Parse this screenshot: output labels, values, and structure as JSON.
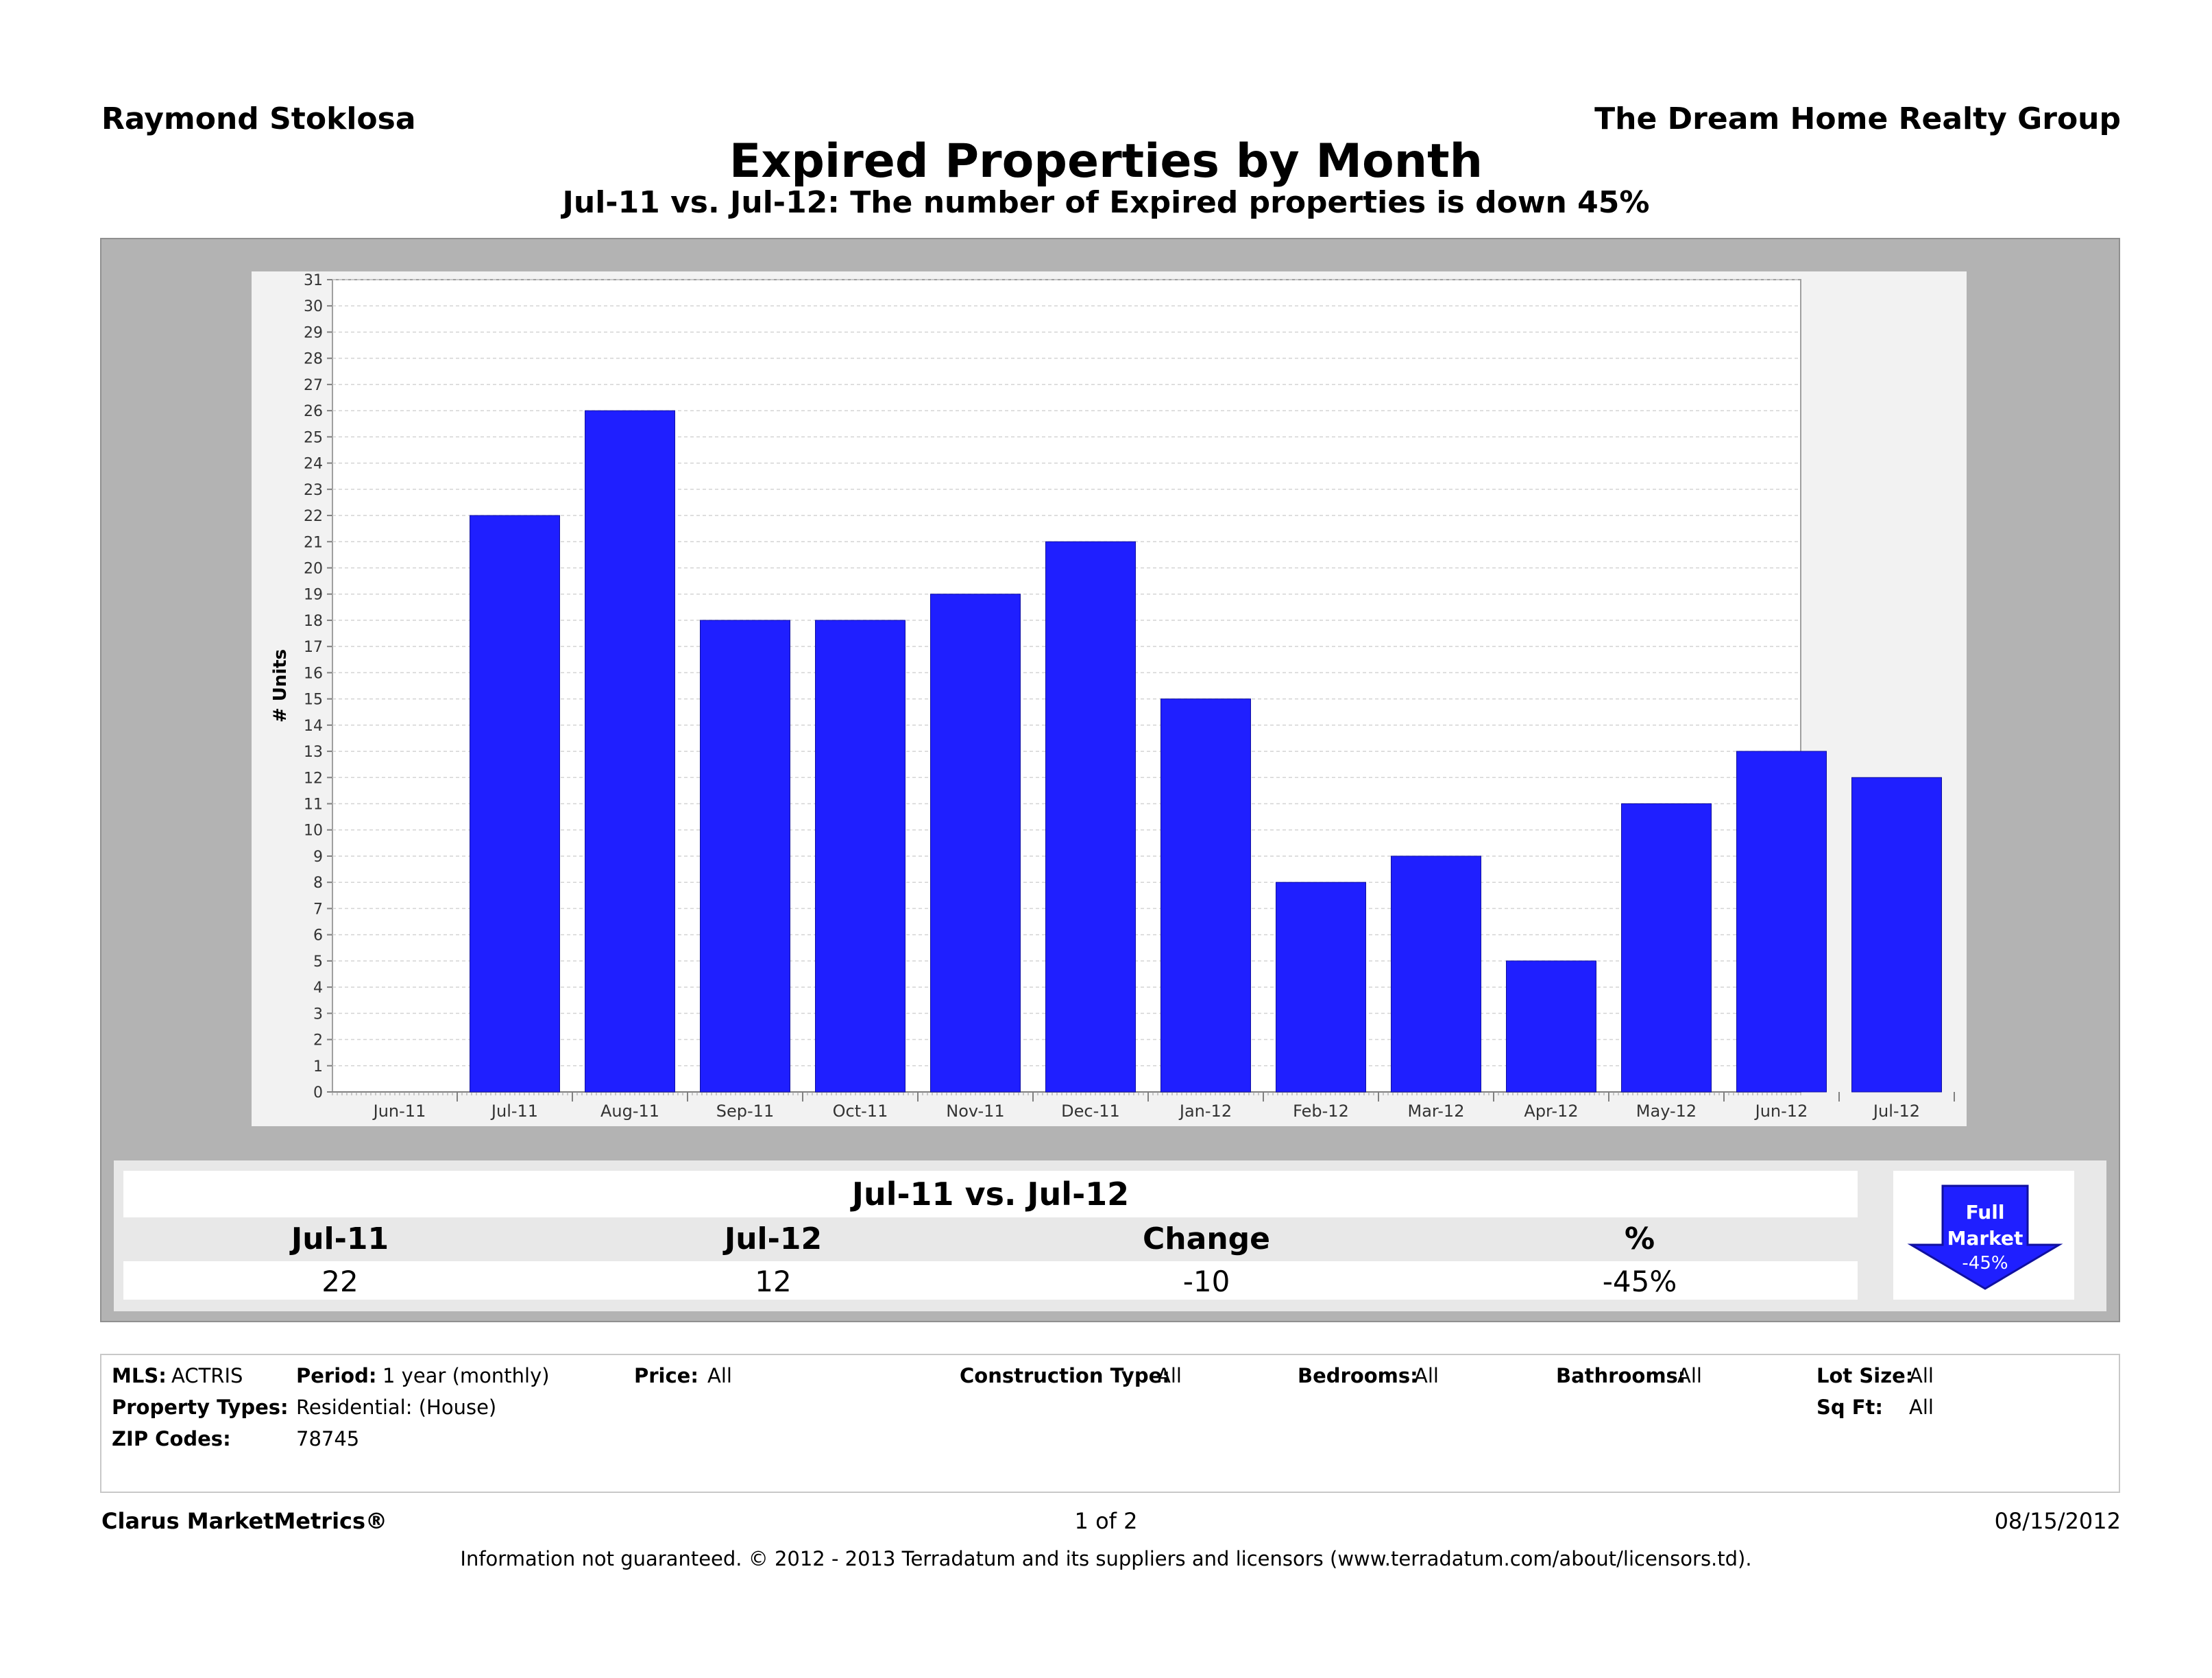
{
  "header": {
    "agent": "Raymond Stoklosa",
    "company": "The Dream Home Realty Group",
    "title": "Expired Properties by Month",
    "subtitle": "Jul-11 vs. Jul-12: The number of Expired properties is down 45%"
  },
  "chart_data": {
    "type": "bar",
    "title": "Expired Properties by Month",
    "ylabel": "# Units",
    "xlabel": "",
    "ylim": [
      0,
      31
    ],
    "grid": true,
    "bar_color": "#1f1fff",
    "categories": [
      "Jun-11",
      "Jul-11",
      "Aug-11",
      "Sep-11",
      "Oct-11",
      "Nov-11",
      "Dec-11",
      "Jan-12",
      "Feb-12",
      "Mar-12",
      "Apr-12",
      "May-12",
      "Jun-12",
      "Jul-12"
    ],
    "values": [
      null,
      22,
      26,
      18,
      18,
      19,
      21,
      15,
      8,
      9,
      5,
      11,
      13,
      12
    ]
  },
  "comparison": {
    "heading": "Jul-11 vs. Jul-12",
    "columns": [
      {
        "label": "Jul-11",
        "value": "22"
      },
      {
        "label": "Jul-12",
        "value": "12"
      },
      {
        "label": "Change",
        "value": "-10"
      },
      {
        "label": "%",
        "value": "-45%"
      }
    ],
    "badge": {
      "line1": "Full",
      "line2": "Market",
      "line3": "-45%",
      "color": "#1f1fff"
    }
  },
  "filters": {
    "mls_label": "MLS:",
    "mls_value": "ACTRIS",
    "period_label": "Period:",
    "period_value": "1 year (monthly)",
    "price_label": "Price:",
    "price_value": "All",
    "construction_label": "Construction Type:",
    "construction_value": "All",
    "bedrooms_label": "Bedrooms:",
    "bedrooms_value": "All",
    "bathrooms_label": "Bathrooms:",
    "bathrooms_value": "All",
    "lotsize_label": "Lot Size:",
    "lotsize_value": "All",
    "proptypes_label": "Property Types:",
    "proptypes_value": "Residential: (House)",
    "sqft_label": "Sq Ft:",
    "sqft_value": "All",
    "zip_label": "ZIP Codes:",
    "zip_value": "78745"
  },
  "footer": {
    "brand": "Clarus MarketMetrics®",
    "page": "1 of 2",
    "date": "08/15/2012",
    "disclaimer": "Information not guaranteed.  © 2012 - 2013 Terradatum and its suppliers and licensors (www.terradatum.com/about/licensors.td)."
  }
}
